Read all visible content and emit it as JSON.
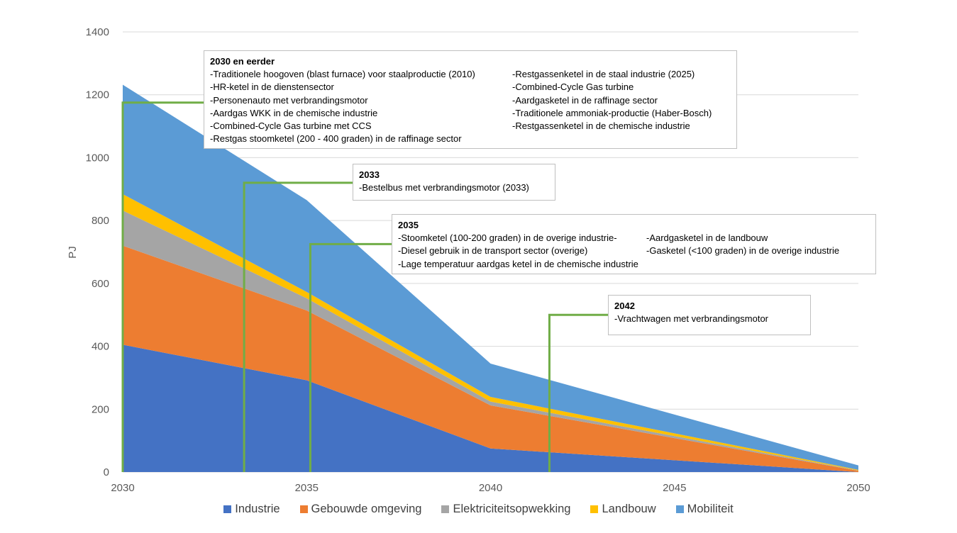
{
  "chart_data": {
    "type": "area",
    "stacked": true,
    "x": [
      2030,
      2035,
      2040,
      2050
    ],
    "xticks": [
      "2030",
      "2035",
      "2040",
      "2045",
      "2050"
    ],
    "yticks": [
      "0",
      "200",
      "400",
      "600",
      "800",
      "1000",
      "1200",
      "1400"
    ],
    "ylabel": "PJ",
    "xlim": [
      2030,
      2050
    ],
    "ylim": [
      0,
      1400
    ],
    "grid": true,
    "legend_position": "bottom",
    "series": [
      {
        "name": "Industrie",
        "color": "#4472C4",
        "values": [
          405,
          292,
          75,
          0
        ]
      },
      {
        "name": "Gebouwde omgeving",
        "color": "#ED7D31",
        "values": [
          315,
          222,
          137,
          4
        ]
      },
      {
        "name": "Elektriciteitsopwekking",
        "color": "#A5A5A5",
        "values": [
          112,
          39,
          12,
          1
        ]
      },
      {
        "name": "Landbouw",
        "color": "#FFC000",
        "values": [
          52,
          20,
          15,
          2
        ]
      },
      {
        "name": "Mobiliteit",
        "color": "#5B9BD5",
        "values": [
          348,
          292,
          106,
          14
        ]
      }
    ],
    "milestones": [
      {
        "year": 2030,
        "level": 1175
      },
      {
        "year": 2033.3,
        "level": 920
      },
      {
        "year": 2035.1,
        "level": 725
      },
      {
        "year": 2041.6,
        "level": 500
      }
    ]
  },
  "annotations": [
    {
      "title": "2030 en eerder",
      "columns": [
        [
          "-Traditionele hoogoven (blast furnace) voor staalproductie (2010)",
          "-HR-ketel in de dienstensector",
          "-Personenauto met verbrandingsmotor",
          "-Aardgas WKK in de chemische industrie",
          "-Combined-Cycle Gas turbine met CCS",
          "-Restgas stoomketel (200 - 400 graden) in de raffinage sector"
        ],
        [
          "-Restgassenketel in de staal industrie (2025)",
          "-Combined-Cycle Gas turbine",
          "-Aardgasketel in de raffinage sector",
          "-Traditionele ammoniak-productie (Haber-Bosch)",
          "-Restgassenketel in de chemische industrie"
        ]
      ]
    },
    {
      "title": "2033",
      "columns": [
        [
          "-Bestelbus met verbrandingsmotor (2033)"
        ]
      ]
    },
    {
      "title": "2035",
      "columns": [
        [
          "-Stoomketel (100-200 graden) in de overige industrie-",
          "-Diesel gebruik in de transport sector (overige)",
          "-Lage temperatuur aardgas ketel in de chemische industrie"
        ],
        [
          "-Aardgasketel in de landbouw",
          "-Gasketel (<100 graden) in de overige industrie"
        ]
      ]
    },
    {
      "title": "2042",
      "columns": [
        [
          "-Vrachtwagen met verbrandingsmotor"
        ]
      ]
    }
  ],
  "colors": {
    "milestone_line": "#70AD47",
    "gridline": "#d9d9d9",
    "axis_text": "#595959"
  }
}
